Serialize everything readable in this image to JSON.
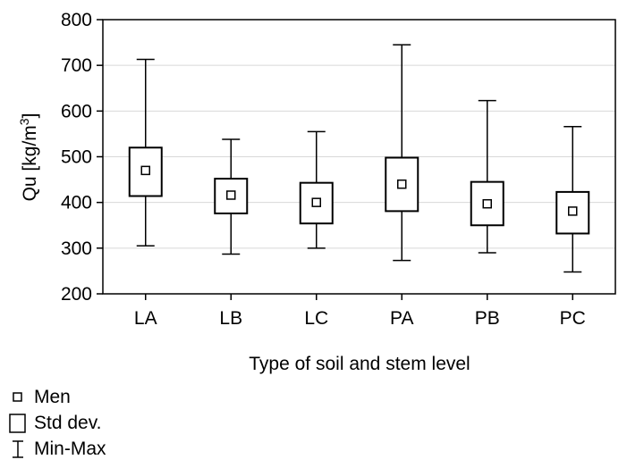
{
  "chart_data": {
    "type": "boxplot",
    "title": "",
    "xlabel": "Type of soil and stem level",
    "ylabel_main": "Qu [kg/m",
    "ylabel_sup": "3",
    "ylabel_tail": "]",
    "ylim": [
      200,
      800
    ],
    "yticks": [
      "200",
      "300",
      "400",
      "500",
      "600",
      "700",
      "800"
    ],
    "grid": "horizontal",
    "categories": [
      "LA",
      "LB",
      "LC",
      "PA",
      "PB",
      "PC"
    ],
    "mean": [
      470,
      416,
      400,
      440,
      397,
      381
    ],
    "sd_low": [
      414,
      376,
      354,
      381,
      350,
      332
    ],
    "sd_high": [
      520,
      452,
      443,
      498,
      445,
      423
    ],
    "min": [
      305,
      287,
      300,
      273,
      290,
      248
    ],
    "max": [
      713,
      538,
      555,
      745,
      623,
      566
    ]
  },
  "legend": {
    "mean_label": "Men",
    "sd_label": "Std dev.",
    "minmax_label": "Min-Max",
    "placement": "bottom-left"
  }
}
